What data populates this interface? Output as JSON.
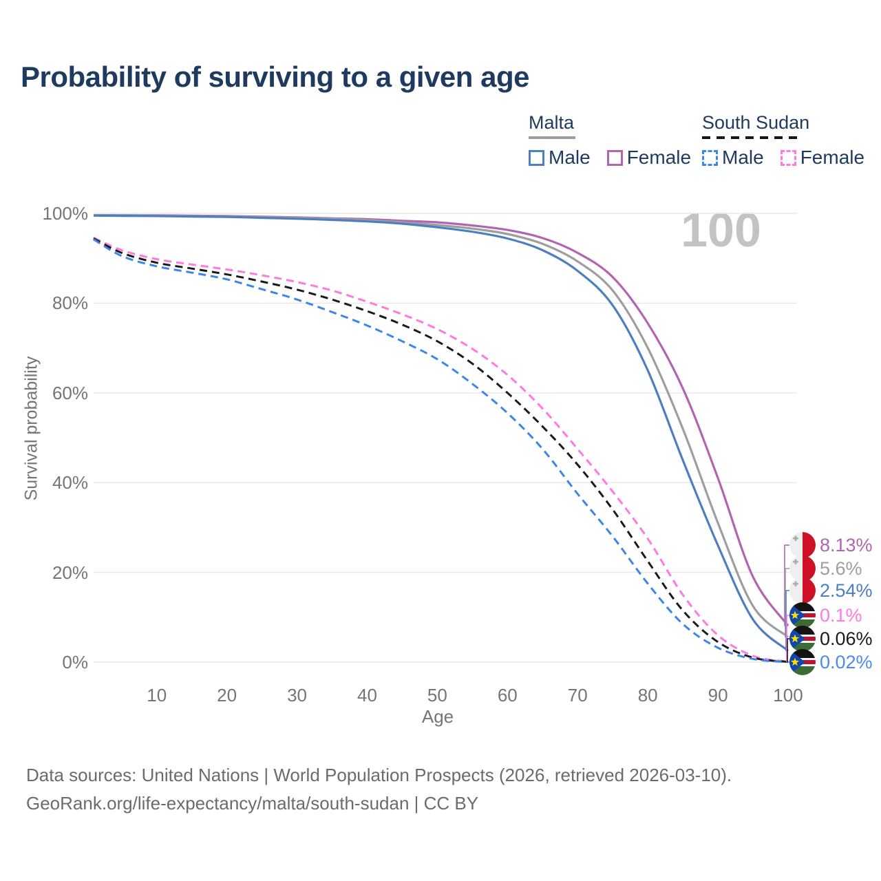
{
  "title": "Probability of surviving to a given age",
  "watermark_age": "100",
  "legend": {
    "groups": [
      {
        "label": "Malta",
        "underline_style": "solid",
        "underline_color": "#9e9e9e",
        "items": [
          {
            "label": "Male",
            "color": "#4d7ec0",
            "dashed": false
          },
          {
            "label": "Female",
            "color": "#b264b2",
            "dashed": false
          }
        ]
      },
      {
        "label": "South Sudan",
        "underline_style": "dashed",
        "underline_color": "#161616",
        "items": [
          {
            "label": "Male",
            "color": "#3c85ea",
            "dashed": true
          },
          {
            "label": "Female",
            "color": "#ff79e1",
            "dashed": true
          }
        ]
      }
    ]
  },
  "chart_data": {
    "type": "line",
    "title": "Probability of surviving to a given age",
    "xlabel": "Age",
    "ylabel": "Survival probability",
    "xlim": [
      1,
      100
    ],
    "ylim": [
      0,
      100
    ],
    "grid": "horizontal",
    "x_ticks": [
      10,
      20,
      30,
      40,
      50,
      60,
      70,
      80,
      90,
      100
    ],
    "y_ticks": [
      {
        "value": 0,
        "label": "0%"
      },
      {
        "value": 20,
        "label": "20%"
      },
      {
        "value": 40,
        "label": "40%"
      },
      {
        "value": 60,
        "label": "60%"
      },
      {
        "value": 80,
        "label": "80%"
      },
      {
        "value": 100,
        "label": "100%"
      }
    ],
    "x": [
      1,
      5,
      10,
      15,
      20,
      25,
      30,
      35,
      40,
      45,
      50,
      55,
      60,
      65,
      70,
      75,
      80,
      85,
      90,
      95,
      100
    ],
    "series": [
      {
        "name": "Malta Female",
        "country": "Malta",
        "sex": "Female",
        "color": "#b264b2",
        "dash": "solid",
        "end_label": "8.13%",
        "values": [
          99.6,
          99.58,
          99.55,
          99.5,
          99.4,
          99.25,
          99.1,
          98.9,
          98.7,
          98.35,
          98.0,
          97.3,
          96.3,
          94.5,
          91.2,
          85.8,
          75.5,
          61,
          41,
          19,
          8.13
        ]
      },
      {
        "name": "Malta Both sexes",
        "country": "Malta",
        "sex": "Both",
        "color": "#9e9e9e",
        "dash": "solid",
        "end_label": "5.6%",
        "values": [
          99.6,
          99.55,
          99.5,
          99.4,
          99.3,
          99.15,
          99.0,
          98.8,
          98.5,
          98.0,
          97.4,
          96.6,
          95.4,
          93.2,
          89.3,
          82.8,
          70,
          52,
          31,
          12.5,
          5.6
        ]
      },
      {
        "name": "Malta Male",
        "country": "Malta",
        "sex": "Male",
        "color": "#4d7ec0",
        "dash": "solid",
        "end_label": "2.54%",
        "values": [
          99.5,
          99.45,
          99.4,
          99.3,
          99.2,
          99.0,
          98.8,
          98.55,
          98.2,
          97.7,
          96.9,
          95.9,
          94.4,
          91.8,
          87.2,
          79.5,
          65,
          45,
          26,
          9.5,
          2.54
        ]
      },
      {
        "name": "South Sudan Female",
        "country": "South Sudan",
        "sex": "Female",
        "color": "#ff79e1",
        "dash": "dashed",
        "end_label": "0.1%",
        "values": [
          94.6,
          91.8,
          89.8,
          88.6,
          87.5,
          86.2,
          84.7,
          82.8,
          80.3,
          77.5,
          74.2,
          69.8,
          64,
          56.5,
          47.5,
          38,
          27.5,
          15,
          6,
          1.4,
          0.1
        ]
      },
      {
        "name": "South Sudan Both sexes",
        "country": "South Sudan",
        "sex": "Both",
        "color": "#1a1a1a",
        "dash": "dashed",
        "end_label": "0.06%",
        "values": [
          94.4,
          91.2,
          89.0,
          87.7,
          86.4,
          84.8,
          83.0,
          80.8,
          78.2,
          75.2,
          71.5,
          66.5,
          60,
          52.5,
          44,
          34,
          22.5,
          11.5,
          4.5,
          1.0,
          0.06
        ]
      },
      {
        "name": "South Sudan Male",
        "country": "South Sudan",
        "sex": "Male",
        "color": "#3c85ea",
        "dash": "dashed",
        "end_label": "0.02%",
        "values": [
          94.2,
          90.5,
          88.2,
          86.8,
          85.3,
          83.1,
          80.8,
          78,
          75,
          71.5,
          67.5,
          62,
          55.5,
          47.5,
          37.5,
          28,
          17.5,
          8.5,
          3.2,
          0.7,
          0.02
        ]
      }
    ],
    "end_labels": [
      {
        "text": "8.13%",
        "color": "#b264b2",
        "flag": "malta",
        "series": "Malta Female"
      },
      {
        "text": "5.6%",
        "color": "#9e9e9e",
        "flag": "malta",
        "series": "Malta Both sexes"
      },
      {
        "text": "2.54%",
        "color": "#4d7ec0",
        "flag": "malta",
        "series": "Malta Male"
      },
      {
        "text": "0.1%",
        "color": "#ff79e1",
        "flag": "southsudan",
        "series": "South Sudan Female"
      },
      {
        "text": "0.06%",
        "color": "#1a1a1a",
        "flag": "southsudan",
        "series": "South Sudan Both sexes"
      },
      {
        "text": "0.02%",
        "color": "#4b8bf0",
        "flag": "southsudan",
        "series": "South Sudan Male"
      }
    ]
  },
  "footer": {
    "line1": "Data sources: United Nations | World Population Prospects (2026, retrieved 2026-03-10).",
    "line2": "GeoRank.org/life-expectancy/malta/south-sudan | CC BY"
  }
}
